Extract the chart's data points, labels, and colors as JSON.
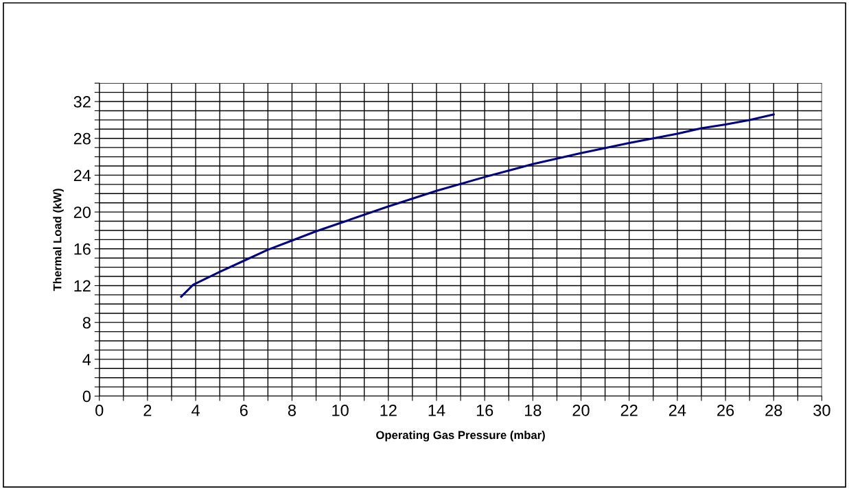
{
  "chart_data": {
    "type": "line",
    "xlabel": "Operating Gas Pressure (mbar)",
    "ylabel": "Thermal Load (kW)",
    "x": [
      3.4,
      3.9,
      5,
      6,
      7,
      8,
      9,
      10,
      12,
      14,
      16,
      18,
      20,
      22,
      24,
      25,
      26,
      27,
      28
    ],
    "series": [
      {
        "color": "#000080",
        "values": [
          10.8,
          12.1,
          13.5,
          14.7,
          15.9,
          16.9,
          17.9,
          18.8,
          20.6,
          22.3,
          23.8,
          25.2,
          26.4,
          27.5,
          28.5,
          29.1,
          29.5,
          30.0,
          30.6
        ]
      }
    ],
    "xlim": [
      0,
      30
    ],
    "xticks": [
      0,
      {
        "value": 1,
        "label": null
      },
      2,
      {
        "value": 3,
        "label": null
      },
      4,
      {
        "value": 5,
        "label": null
      },
      6,
      {
        "value": 7,
        "label": null
      },
      8,
      {
        "value": 9,
        "label": null
      },
      10,
      {
        "value": 11,
        "label": null
      },
      12,
      {
        "value": 13,
        "label": null
      },
      14,
      {
        "value": 15,
        "label": null
      },
      16,
      {
        "value": 17,
        "label": null
      },
      18,
      {
        "value": 19,
        "label": null
      },
      20,
      {
        "value": 21,
        "label": null
      },
      22,
      {
        "value": 23,
        "label": null
      },
      24,
      {
        "value": 25,
        "label": null
      },
      26,
      {
        "value": 27,
        "label": null
      },
      28,
      {
        "value": 29,
        "label": null
      },
      30
    ],
    "ylim": [
      0,
      34
    ],
    "yticks": [
      0,
      {
        "value": 1,
        "label": null
      },
      {
        "value": 2,
        "label": null
      },
      {
        "value": 3,
        "label": null
      },
      4,
      {
        "value": 5,
        "label": null
      },
      {
        "value": 6,
        "label": null
      },
      {
        "value": 7,
        "label": null
      },
      8,
      {
        "value": 9,
        "label": null
      },
      {
        "value": 10,
        "label": null
      },
      {
        "value": 11,
        "label": null
      },
      12,
      {
        "value": 13,
        "label": null
      },
      {
        "value": 14,
        "label": null
      },
      {
        "value": 15,
        "label": null
      },
      16,
      {
        "value": 17,
        "label": null
      },
      {
        "value": 18,
        "label": null
      },
      {
        "value": 19,
        "label": null
      },
      20,
      {
        "value": 21,
        "label": null
      },
      {
        "value": 22,
        "label": null
      },
      {
        "value": 23,
        "label": null
      },
      24,
      {
        "value": 25,
        "label": null
      },
      {
        "value": 26,
        "label": null
      },
      {
        "value": 27,
        "label": null
      },
      28,
      {
        "value": 29,
        "label": null
      },
      {
        "value": 30,
        "label": null
      },
      {
        "value": 31,
        "label": null
      },
      32,
      {
        "value": 33,
        "label": null
      },
      {
        "value": 34,
        "label": null
      }
    ],
    "grid": true,
    "marker": "none",
    "line_style": "solid",
    "legend": false
  }
}
